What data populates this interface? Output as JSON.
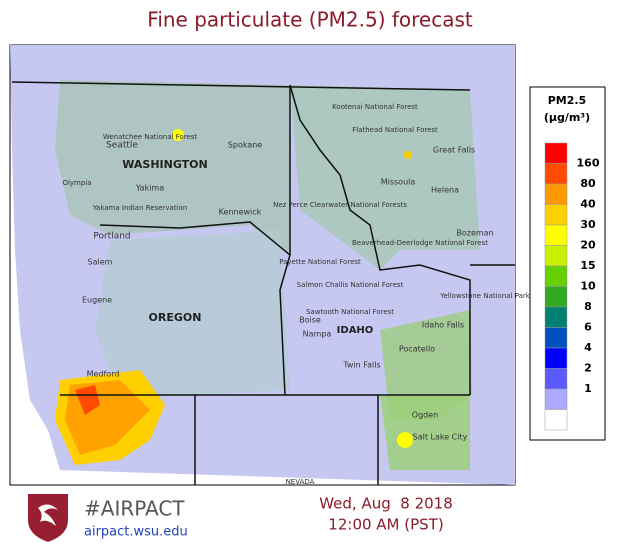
{
  "header": {
    "title": "Fine particulate (PM2.5) forecast"
  },
  "map": {
    "labels": [
      "WASHINGTON",
      "OREGON",
      "IDAHO",
      "Seattle",
      "Portland",
      "Spokane",
      "Yakima",
      "Kennewick",
      "Salem",
      "Eugene",
      "Medford",
      "Boise",
      "Nampa",
      "Twin Falls",
      "Pocatello",
      "Idaho Falls",
      "Missoula",
      "Helena",
      "Great Falls",
      "Bozeman",
      "Ogden",
      "Salt Lake City",
      "Olympia",
      "Wenatchee National Forest",
      "Flathead National Forest",
      "Nez Perce Clearwater National Forests",
      "Payette National Forest",
      "Salmon Challis National Forest",
      "Sawtooth National Forest",
      "Beaverhead-Deerlodge National Forest",
      "Yellowstone National Park",
      "Yakama Indian Reservation",
      "Kootenai National Forest",
      "NEVADA"
    ]
  },
  "legend": {
    "title": "PM2.5",
    "unit": "(μg/m³)",
    "colors": [
      "#ff0000",
      "#ff4a00",
      "#ff9900",
      "#ffd000",
      "#ffff00",
      "#c8f000",
      "#66d000",
      "#30a820",
      "#008070",
      "#0050c0",
      "#0000ff",
      "#5a5aff",
      "#aaaaff",
      "#ffffff"
    ],
    "labels": [
      "160",
      "80",
      "40",
      "30",
      "20",
      "15",
      "10",
      "8",
      "6",
      "4",
      "2",
      "1"
    ]
  },
  "footer": {
    "hashtag": "#AIRPACT",
    "url": "airpact.wsu.edu",
    "date": "Wed, Aug  8 2018",
    "time": "12:00 AM (PST)"
  }
}
